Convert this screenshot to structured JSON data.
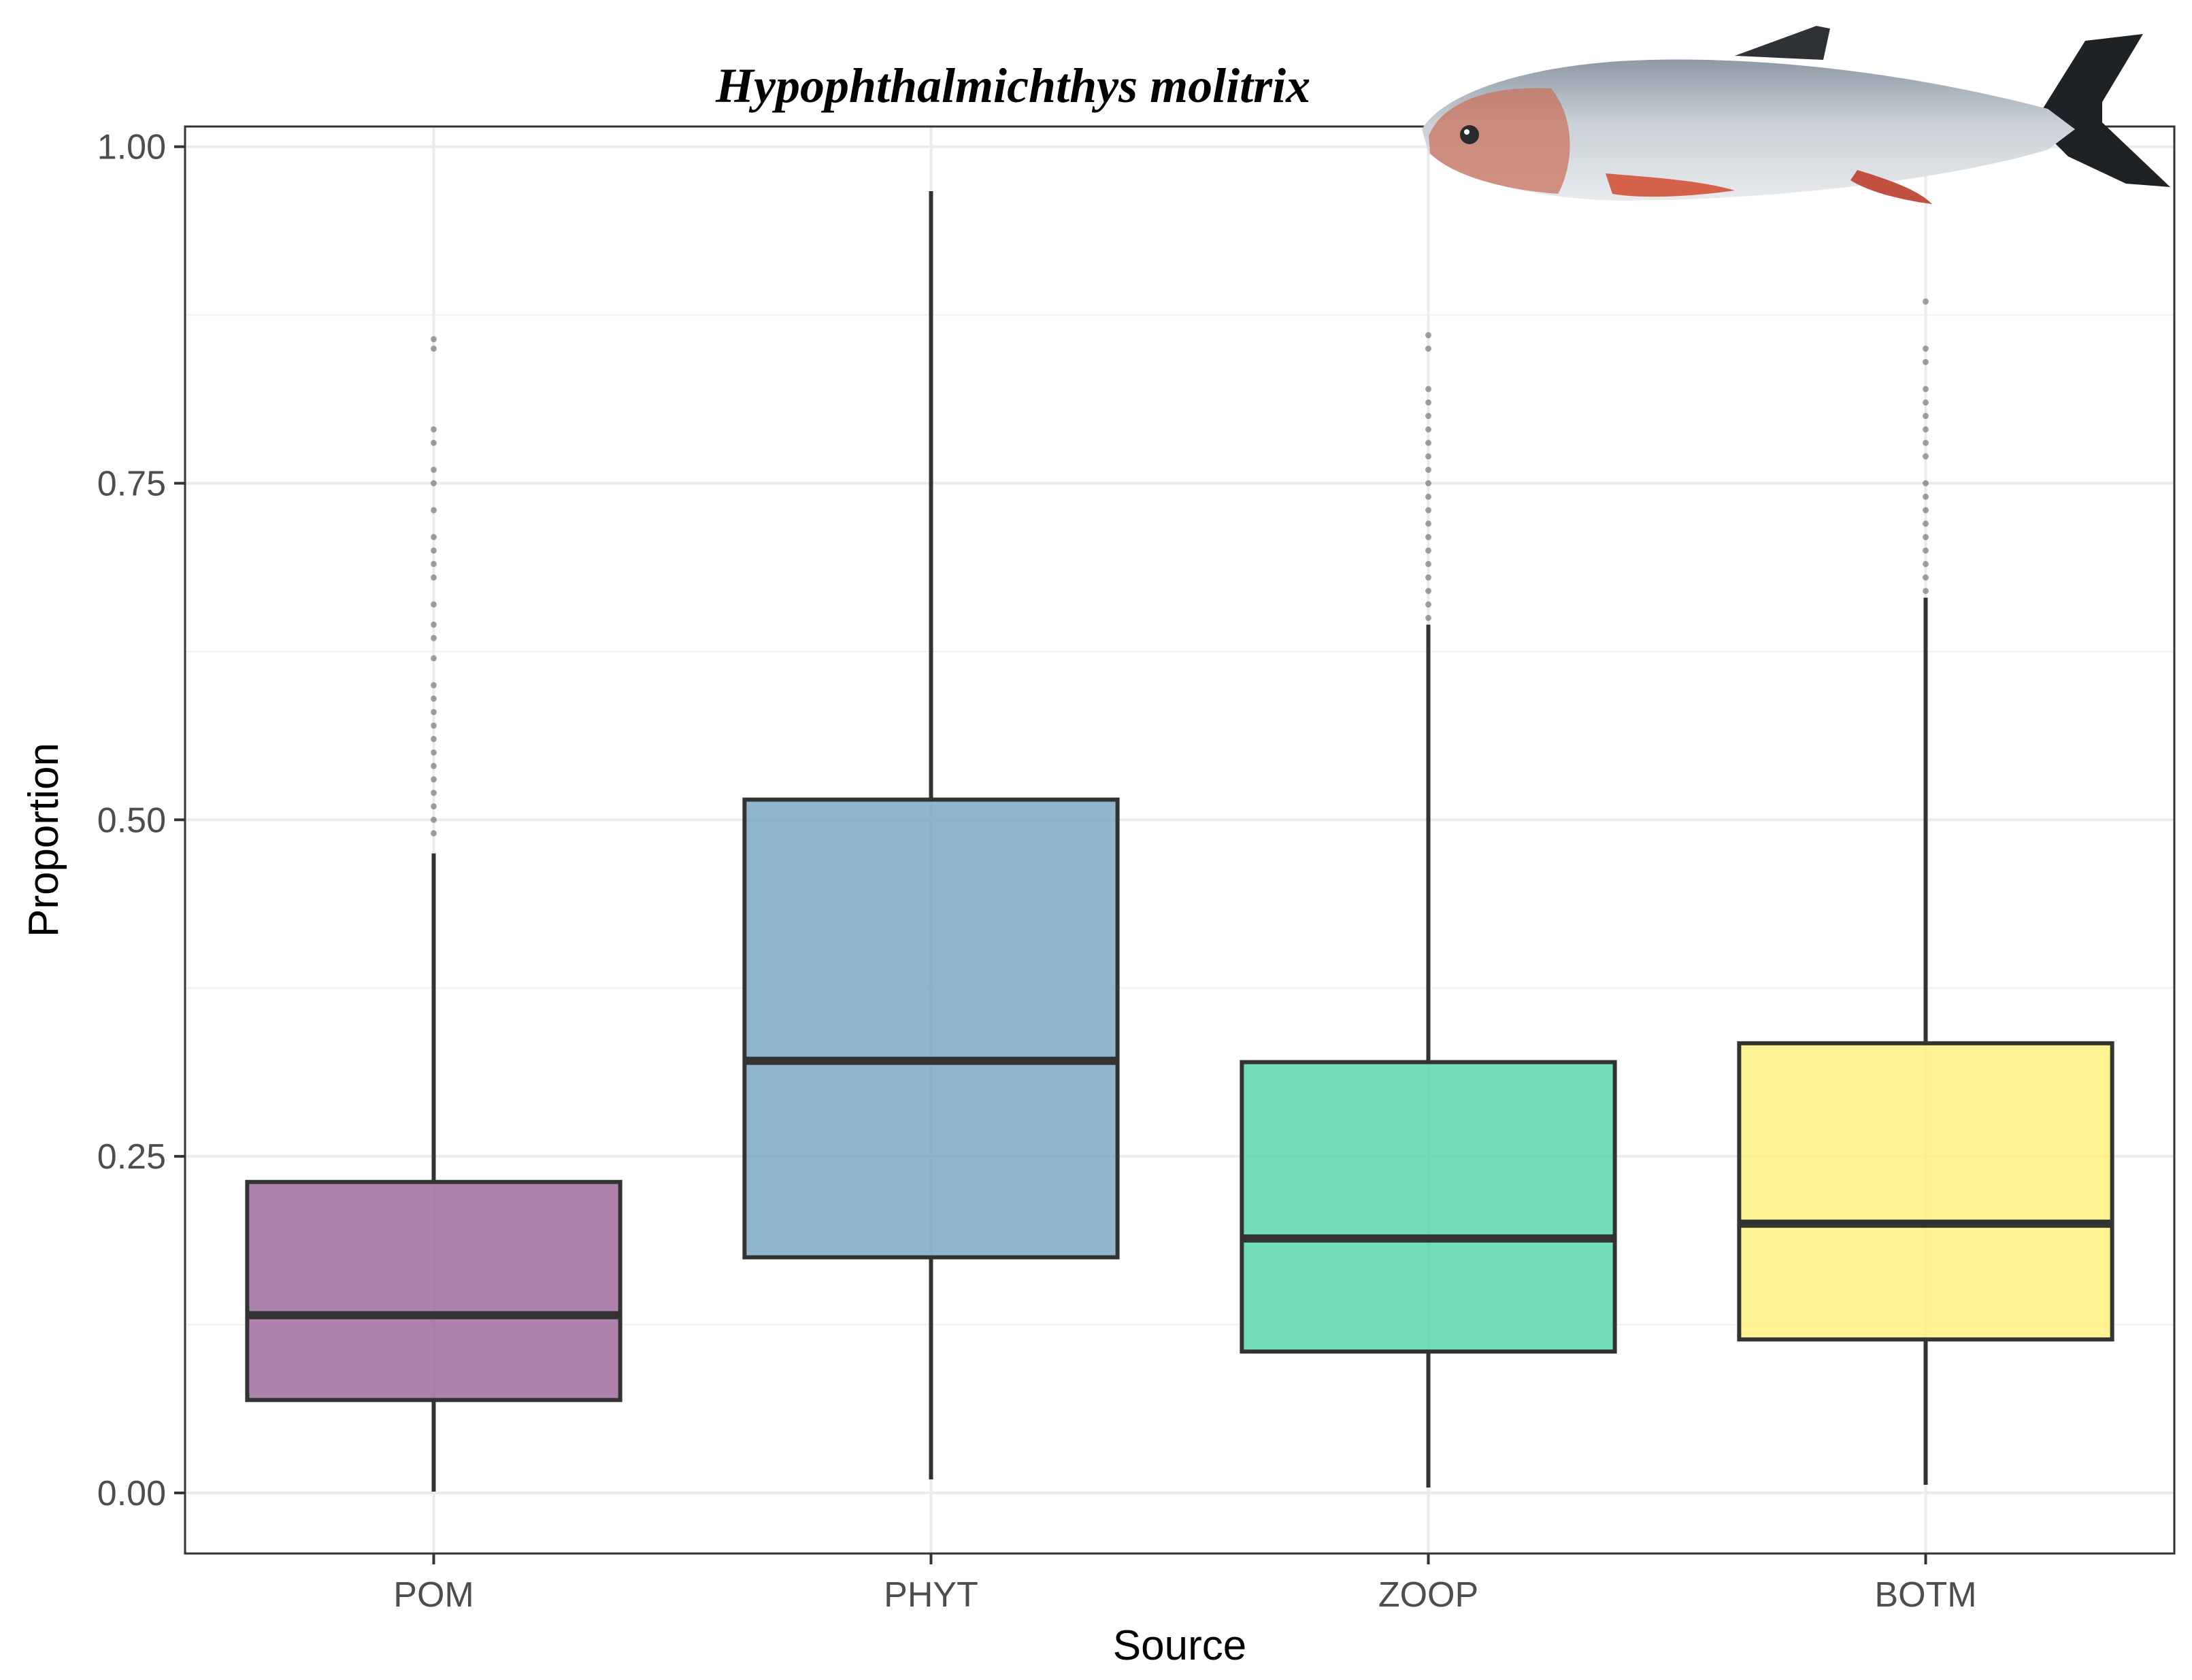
{
  "chart_data": {
    "type": "boxplot",
    "title": "Hypophthalmichthys molitrix",
    "xlabel": "Source",
    "ylabel": "Proportion",
    "ylim": [
      -0.045,
      1.015
    ],
    "yticks": [
      "0.00",
      "0.25",
      "0.50",
      "0.75",
      "1.00"
    ],
    "ytick_values": [
      0,
      0.25,
      0.5,
      0.75,
      1.0
    ],
    "grid": true,
    "categories": [
      "POM",
      "PHYT",
      "ZOOP",
      "BOTM"
    ],
    "boxes": [
      {
        "name": "POM",
        "color": "#9b6399",
        "whisker_low": 0.001,
        "q1": 0.069,
        "median": 0.132,
        "q3": 0.231,
        "whisker_high": 0.475,
        "outliers": [
          0.49,
          0.5,
          0.51,
          0.52,
          0.53,
          0.54,
          0.55,
          0.56,
          0.57,
          0.58,
          0.59,
          0.6,
          0.62,
          0.635,
          0.645,
          0.66,
          0.68,
          0.69,
          0.7,
          0.71,
          0.73,
          0.75,
          0.76,
          0.78,
          0.79,
          0.85,
          0.857
        ]
      },
      {
        "name": "PHYT",
        "color": "#75a3bf",
        "whisker_low": 0.01,
        "q1": 0.175,
        "median": 0.321,
        "q3": 0.515,
        "whisker_high": 0.967,
        "outliers": []
      },
      {
        "name": "ZOOP",
        "color": "#4fd4aa",
        "whisker_low": 0.004,
        "q1": 0.105,
        "median": 0.189,
        "q3": 0.32,
        "whisker_high": 0.645,
        "outliers": [
          0.65,
          0.66,
          0.67,
          0.68,
          0.69,
          0.7,
          0.71,
          0.72,
          0.73,
          0.74,
          0.75,
          0.76,
          0.77,
          0.78,
          0.79,
          0.8,
          0.81,
          0.82,
          0.85,
          0.86
        ]
      },
      {
        "name": "BOTM",
        "color": "#fff176",
        "whisker_low": 0.006,
        "q1": 0.114,
        "median": 0.2,
        "q3": 0.334,
        "whisker_high": 0.665,
        "outliers": [
          0.67,
          0.68,
          0.69,
          0.7,
          0.71,
          0.72,
          0.73,
          0.74,
          0.75,
          0.77,
          0.78,
          0.79,
          0.8,
          0.81,
          0.82,
          0.84,
          0.85,
          0.885
        ]
      }
    ]
  }
}
